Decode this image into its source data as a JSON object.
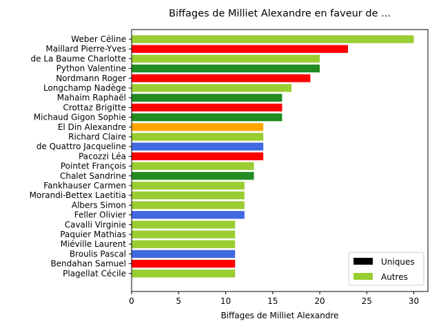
{
  "chart_data": {
    "type": "bar",
    "orientation": "horizontal",
    "title": "Biffages de Milliet Alexandre en faveur de ...",
    "xlabel": "Biffages de Milliet Alexandre",
    "ylabel": "",
    "xlim": [
      0,
      31.5
    ],
    "xticks": [
      0,
      5,
      10,
      15,
      20,
      25,
      30
    ],
    "grid": false,
    "legend_position": "lower right",
    "legend": [
      {
        "label": "Uniques",
        "color": "#000000"
      },
      {
        "label": "Autres",
        "color": "#9acd32"
      }
    ],
    "categories": [
      "Weber Céline",
      "Maillard Pierre-Yves",
      "de La Baume Charlotte",
      "Python Valentine",
      "Nordmann Roger",
      "Longchamp Nadège",
      "Mahaim Raphaël",
      "Crottaz Brigitte",
      "Michaud Gigon Sophie",
      "El Din Alexandre",
      "Richard Claire",
      "de Quattro Jacqueline",
      "Pacozzi Léa",
      "Pointet François",
      "Chalet Sandrine",
      "Fankhauser Carmen",
      "Morandi-Bettex Laetitia",
      "Albers Simon",
      "Feller Olivier",
      "Cavalli Virginie",
      "Paquier Mathias",
      "Miéville Laurent",
      "Broulis Pascal",
      "Bendahan Samuel",
      "Plagellat Cécile"
    ],
    "values": [
      30,
      23,
      20,
      20,
      19,
      17,
      16,
      16,
      16,
      14,
      14,
      14,
      14,
      13,
      13,
      12,
      12,
      12,
      12,
      11,
      11,
      11,
      11,
      11,
      11
    ],
    "colors": [
      "#9acd32",
      "#ff0000",
      "#9acd32",
      "#228b22",
      "#ff0000",
      "#9acd32",
      "#228b22",
      "#ff0000",
      "#228b22",
      "#ffa500",
      "#9acd32",
      "#4169e1",
      "#ff0000",
      "#9acd32",
      "#228b22",
      "#9acd32",
      "#9acd32",
      "#9acd32",
      "#4169e1",
      "#9acd32",
      "#9acd32",
      "#9acd32",
      "#4169e1",
      "#ff0000",
      "#9acd32"
    ]
  }
}
